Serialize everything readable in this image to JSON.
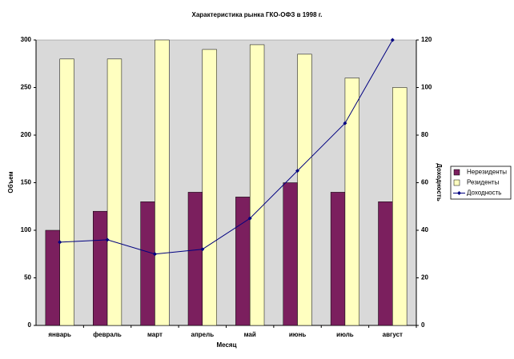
{
  "chart_data": {
    "type": "bar",
    "title": "Характеристика рынка ГКО-ОФЗ в 1998 г.",
    "x_label": "Месяц",
    "y_label": "Объем",
    "y2_label": "Доходность",
    "categories": [
      "январь",
      "февраль",
      "март",
      "апрель",
      "май",
      "июнь",
      "июль",
      "август"
    ],
    "series": [
      {
        "name": "Нерезиденты",
        "color": "#7b1f5e",
        "values": [
          100,
          120,
          130,
          140,
          135,
          150,
          140,
          130
        ]
      },
      {
        "name": "Резиденты",
        "color": "#ffffc0",
        "values": [
          280,
          280,
          300,
          290,
          295,
          285,
          260,
          250
        ]
      },
      {
        "name": "Доходность",
        "type": "line",
        "axis": "y2",
        "color": "#000080",
        "values": [
          35,
          36,
          30,
          32,
          45,
          65,
          85,
          120
        ]
      }
    ],
    "ylim": [
      0,
      300
    ],
    "yticks": [
      0,
      50,
      100,
      150,
      200,
      250,
      300
    ],
    "y2lim": [
      0,
      120
    ],
    "y2ticks": [
      0,
      20,
      40,
      60,
      80,
      100,
      120
    ],
    "grid": false,
    "legend": "right",
    "plot_background": "#d9d9d9"
  }
}
